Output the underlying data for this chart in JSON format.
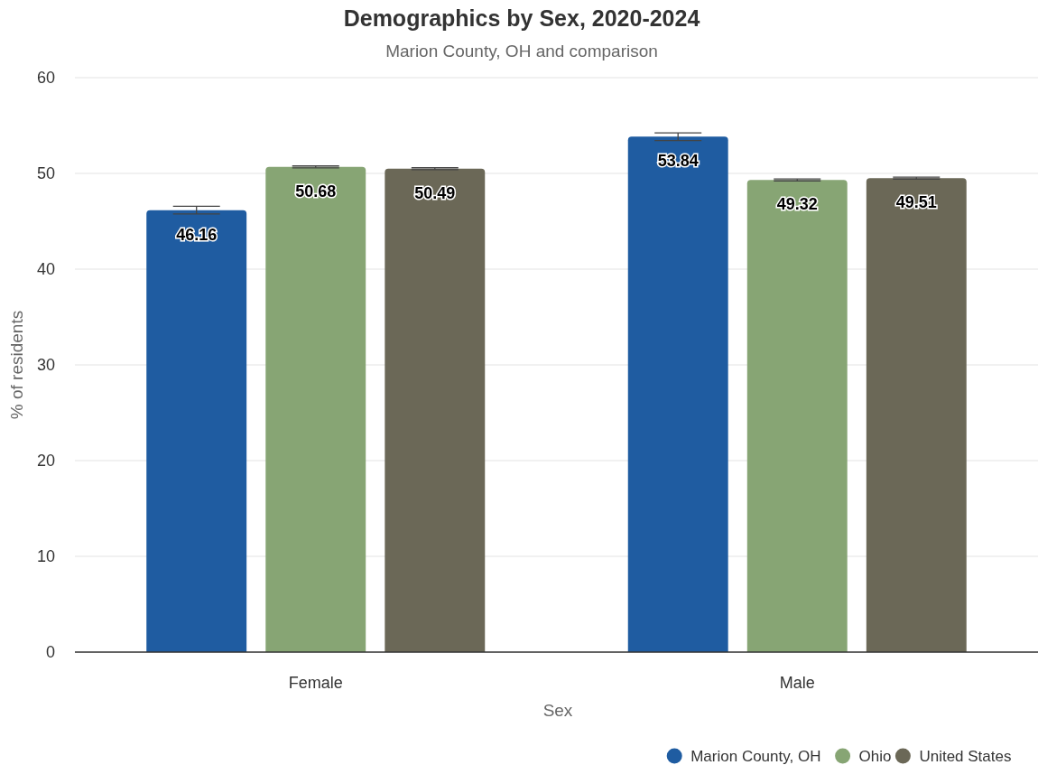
{
  "chart_data": {
    "type": "bar",
    "title": "Demographics by Sex, 2020-2024",
    "subtitle": "Marion County, OH and comparison",
    "xlabel": "Sex",
    "ylabel": "% of residents",
    "categories": [
      "Female",
      "Male"
    ],
    "series": [
      {
        "name": "Marion County, OH",
        "color": "#1f5ca1",
        "values": [
          46.16,
          53.84
        ],
        "errors": [
          0.4,
          0.4
        ]
      },
      {
        "name": "Ohio",
        "color": "#87a574",
        "values": [
          50.68,
          49.32
        ],
        "errors": [
          0.1,
          0.1
        ]
      },
      {
        "name": "United States",
        "color": "#6b6857",
        "values": [
          50.49,
          49.51
        ],
        "errors": [
          0.1,
          0.1
        ]
      }
    ],
    "ylim": [
      0,
      60
    ],
    "yticks": [
      0,
      10,
      20,
      30,
      40,
      50,
      60
    ],
    "grid": "y",
    "legend": "bottom right",
    "data_labels": true
  }
}
